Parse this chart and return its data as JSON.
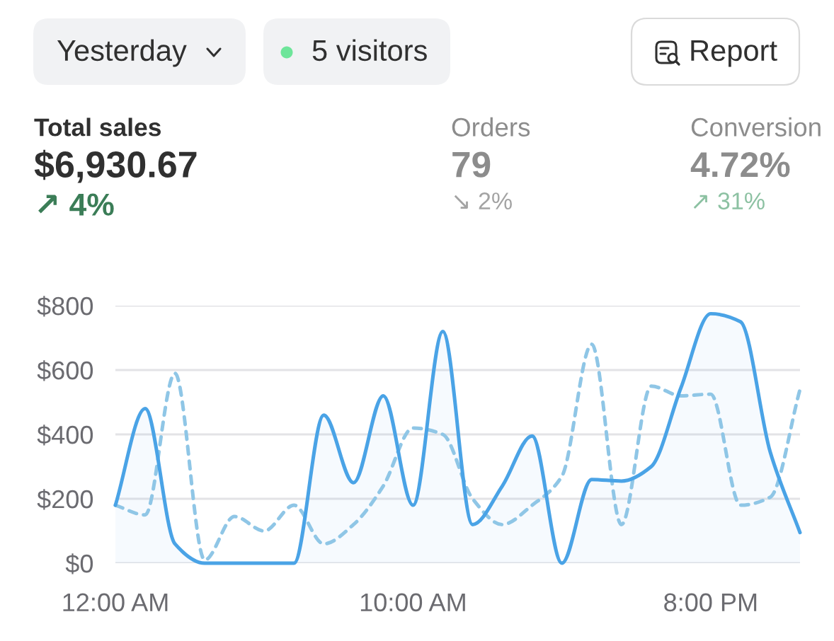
{
  "chart_data": [
    {
      "type": "other",
      "annotations": [
        "Yesterday",
        "5 visitors",
        "Report",
        "Total sales",
        "$6,930.67",
        "↗ 4%",
        "Orders",
        "79",
        "↘ 2%",
        "Conversion",
        "4.72%",
        "↗ 31%"
      ]
    },
    {
      "type": "line",
      "x": [
        0,
        1,
        2,
        3,
        4,
        5,
        6,
        7,
        8,
        9,
        10,
        11,
        12,
        13,
        14,
        15,
        16,
        17,
        18,
        19,
        20,
        21,
        22,
        23
      ],
      "series": [
        {
          "type": "area",
          "color": "#4aa3e6",
          "values": [
            180,
            480,
            60,
            0,
            0,
            0,
            0,
            460,
            250,
            520,
            180,
            720,
            120,
            240,
            395,
            0,
            260,
            255,
            300,
            545,
            775,
            750,
            345,
            95
          ]
        },
        {
          "type": "line",
          "color": "#8fc6e6",
          "line_style": "dashed",
          "values": [
            180,
            150,
            590,
            10,
            145,
            100,
            180,
            60,
            120,
            240,
            420,
            400,
            200,
            120,
            180,
            270,
            680,
            120,
            550,
            520,
            525,
            180,
            205,
            540
          ]
        }
      ],
      "xlim": [
        0,
        23
      ],
      "xticks": [
        {
          "value": 0,
          "label": "12:00 AM"
        },
        {
          "value": 10,
          "label": "10:00 AM"
        },
        {
          "value": 20,
          "label": "8:00 PM"
        }
      ],
      "ylim": [
        0,
        800
      ],
      "yticks": [
        {
          "value": 0,
          "label": "$0"
        },
        {
          "value": 200,
          "label": "$200"
        },
        {
          "value": 400,
          "label": "$400"
        },
        {
          "value": 600,
          "label": "$600"
        },
        {
          "value": 800,
          "label": "$800"
        }
      ],
      "grid": "y"
    }
  ]
}
